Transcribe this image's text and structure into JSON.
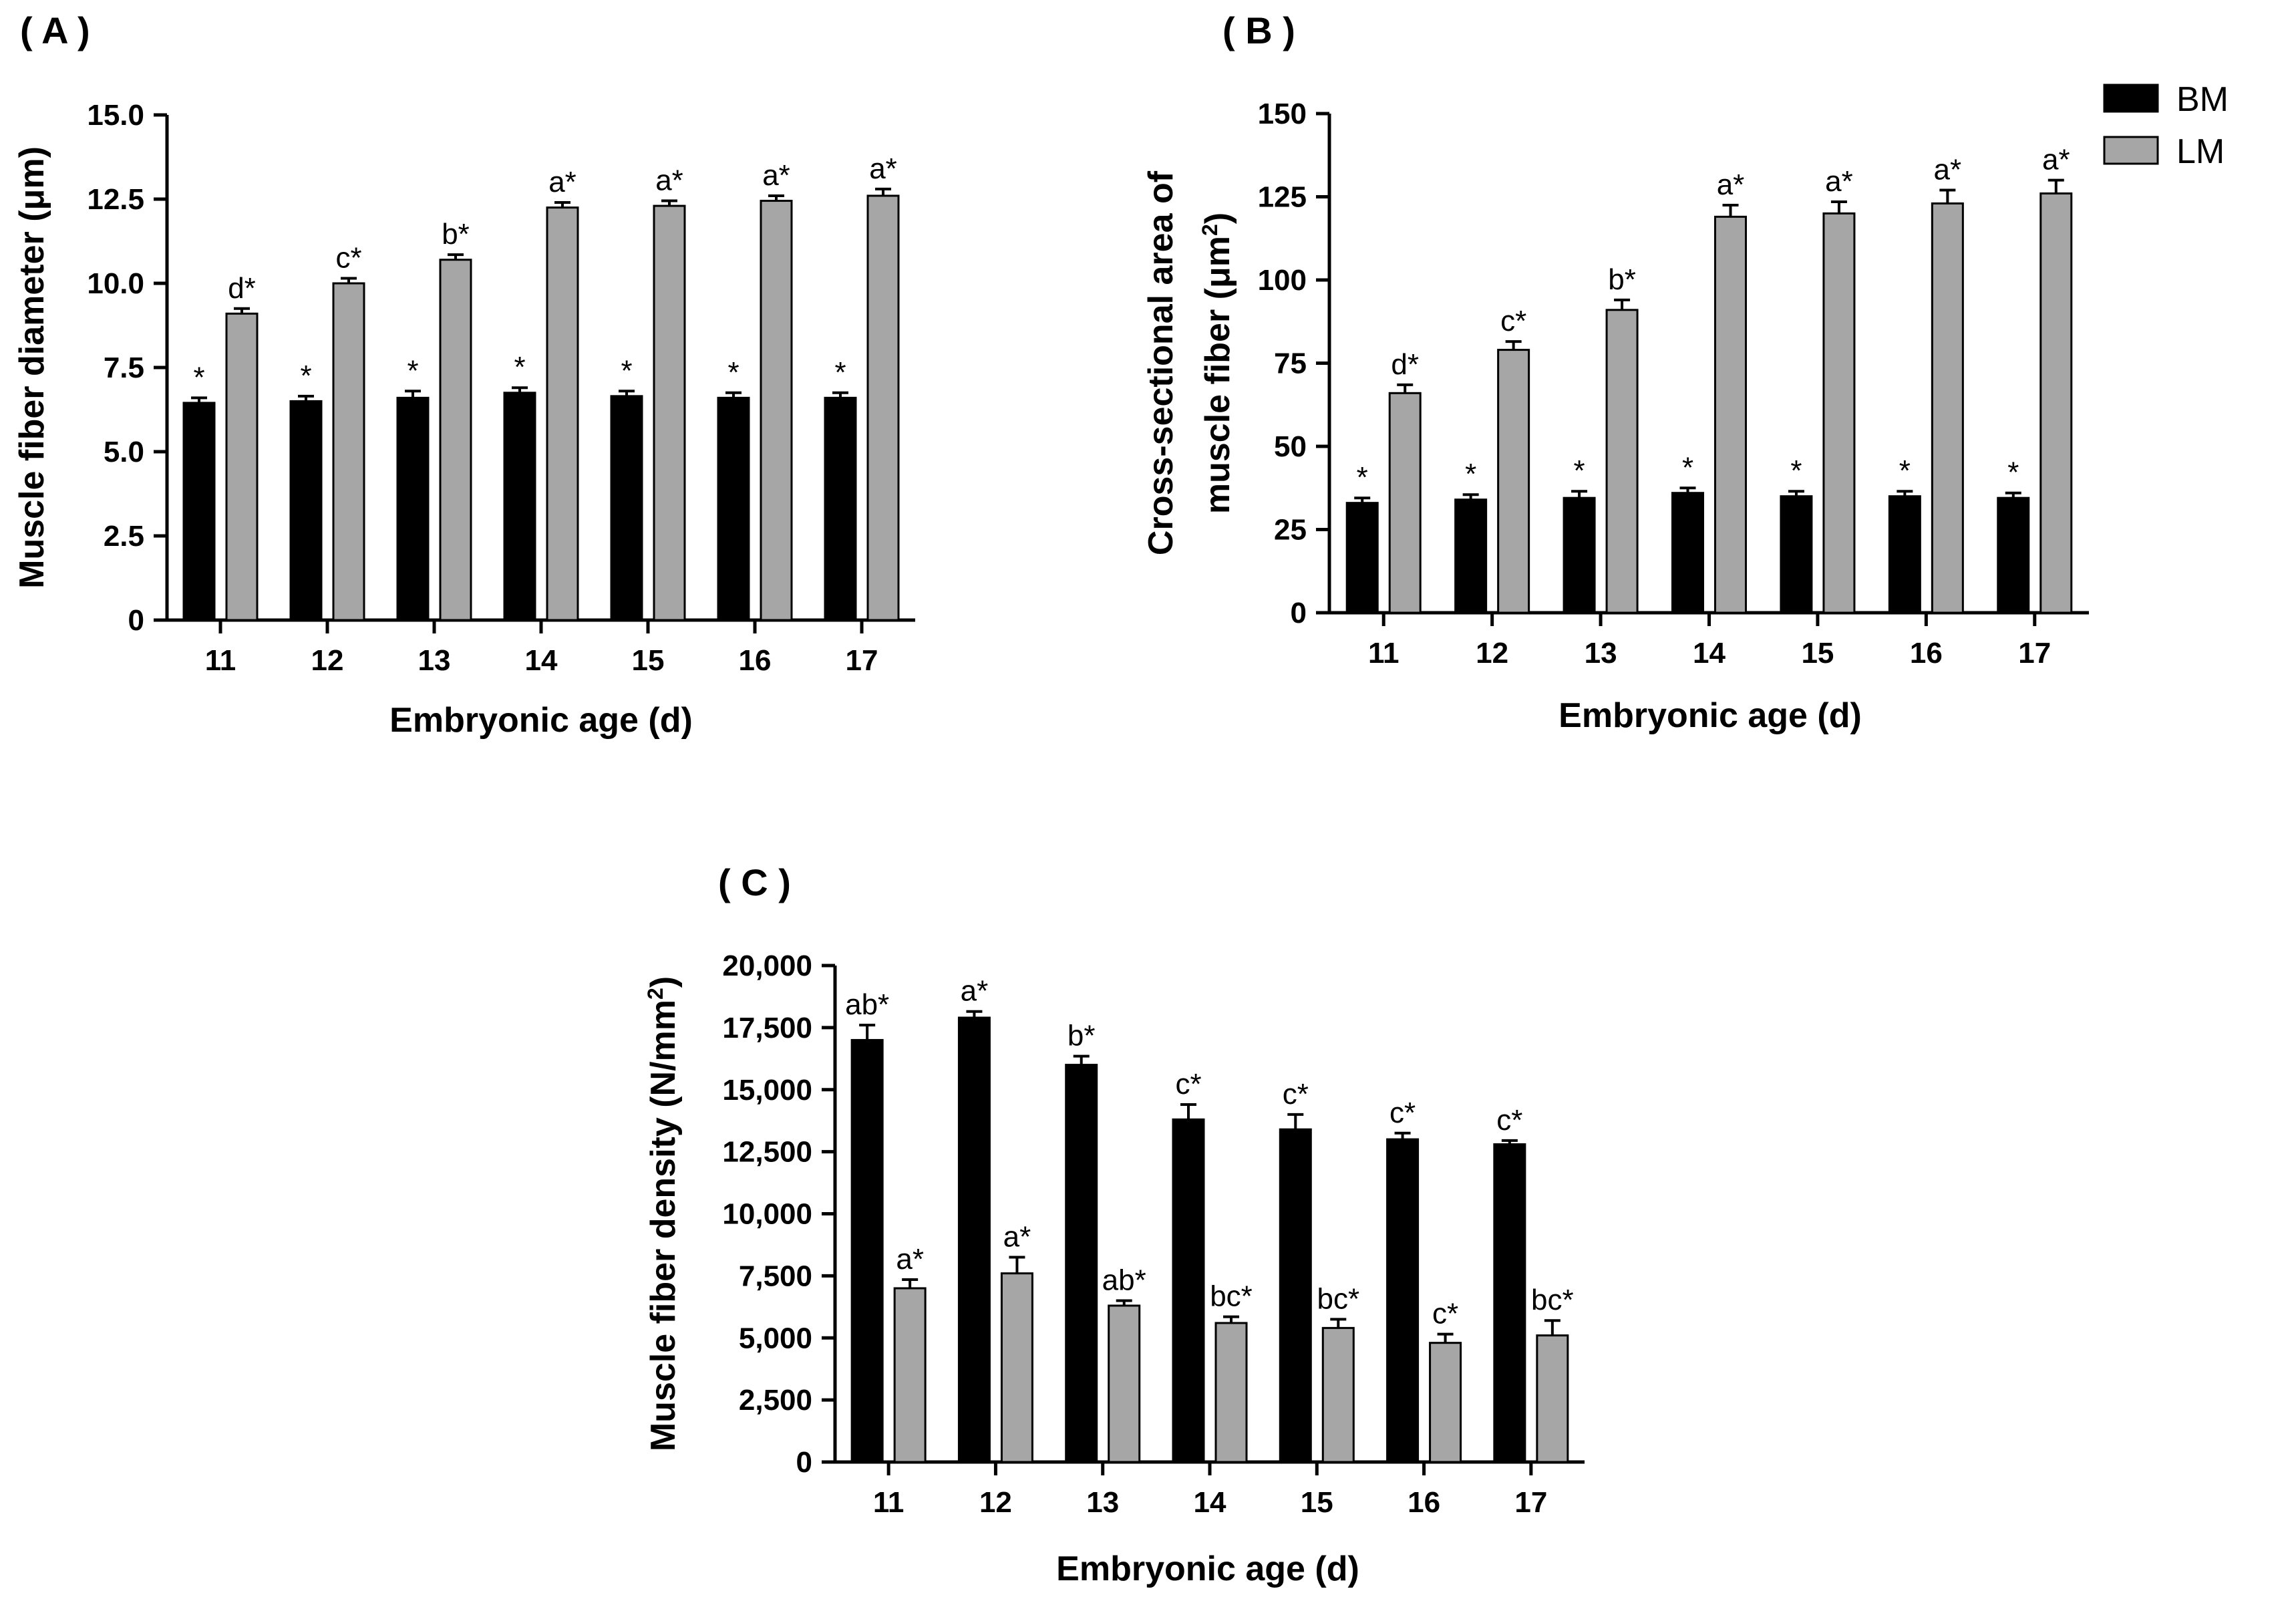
{
  "colors": {
    "BM": "#000000",
    "LM": "#a6a6a6",
    "axis": "#000000",
    "bar_stroke": "#000000"
  },
  "legend": [
    {
      "name": "BM",
      "color": "#000000"
    },
    {
      "name": "LM",
      "color": "#a6a6a6"
    }
  ],
  "chart_data": [
    {
      "panel": "( A )",
      "type": "bar",
      "title": "",
      "xlabel": "Embryonic age (d)",
      "ylabel": "Muscle fiber diameter (μm)",
      "ylim": [
        0,
        15
      ],
      "yticks": [
        "0",
        "2.5",
        "5.0",
        "7.5",
        "10.0",
        "12.5",
        "15.0"
      ],
      "ytick_values": [
        0,
        2.5,
        5.0,
        7.5,
        10.0,
        12.5,
        15.0
      ],
      "categories": [
        "11",
        "12",
        "13",
        "14",
        "15",
        "16",
        "17"
      ],
      "series": [
        {
          "name": "BM",
          "values": [
            6.45,
            6.5,
            6.6,
            6.75,
            6.65,
            6.6,
            6.6
          ],
          "errors": [
            0.15,
            0.15,
            0.2,
            0.15,
            0.15,
            0.15,
            0.15
          ],
          "labels": [
            "*",
            "*",
            "*",
            "*",
            "*",
            "*",
            "*"
          ]
        },
        {
          "name": "LM",
          "values": [
            9.1,
            10.0,
            10.7,
            12.25,
            12.3,
            12.45,
            12.6
          ],
          "errors": [
            0.15,
            0.15,
            0.15,
            0.15,
            0.15,
            0.15,
            0.2
          ],
          "labels": [
            "d*",
            "c*",
            "b*",
            "a*",
            "a*",
            "a*",
            "a*"
          ]
        }
      ]
    },
    {
      "panel": "( B )",
      "type": "bar",
      "title": "",
      "xlabel": "Embryonic age (d)",
      "ylabel_line1": "Cross-sectional area of",
      "ylabel_line2": "muscle fiber (μm",
      "ylabel_sup": "2",
      "ylabel_close": ")",
      "ylim": [
        0,
        150
      ],
      "yticks": [
        "0",
        "25",
        "50",
        "75",
        "100",
        "125",
        "150"
      ],
      "ytick_values": [
        0,
        25,
        50,
        75,
        100,
        125,
        150
      ],
      "categories": [
        "11",
        "12",
        "13",
        "14",
        "15",
        "16",
        "17"
      ],
      "series": [
        {
          "name": "BM",
          "values": [
            33,
            34,
            34.5,
            36,
            35,
            35,
            34.5
          ],
          "errors": [
            1.5,
            1.5,
            2,
            1.5,
            1.5,
            1.5,
            1.5
          ],
          "labels": [
            "*",
            "*",
            "*",
            "*",
            "*",
            "*",
            "*"
          ]
        },
        {
          "name": "LM",
          "values": [
            66,
            79,
            91,
            119,
            120,
            123,
            126
          ],
          "errors": [
            2.5,
            2.5,
            3,
            3.5,
            3.5,
            4,
            4
          ],
          "labels": [
            "d*",
            "c*",
            "b*",
            "a*",
            "a*",
            "a*",
            "a*"
          ]
        }
      ]
    },
    {
      "panel": "( C )",
      "type": "bar",
      "title": "",
      "xlabel": "Embryonic age (d)",
      "ylabel": "Muscle fiber density (N/mm",
      "ylabel_sup": "2",
      "ylabel_close": ")",
      "ylim": [
        0,
        20000
      ],
      "yticks": [
        "0",
        "2,500",
        "5,000",
        "7,500",
        "10,000",
        "12,500",
        "15,000",
        "17,500",
        "20,000"
      ],
      "ytick_values": [
        0,
        2500,
        5000,
        7500,
        10000,
        12500,
        15000,
        17500,
        20000
      ],
      "categories": [
        "11",
        "12",
        "13",
        "14",
        "15",
        "16",
        "17"
      ],
      "series": [
        {
          "name": "BM",
          "values": [
            17000,
            17900,
            16000,
            13800,
            13400,
            13000,
            12800
          ],
          "errors": [
            600,
            250,
            350,
            600,
            600,
            250,
            150
          ],
          "labels": [
            "ab*",
            "a*",
            "b*",
            "c*",
            "c*",
            "c*",
            "c*"
          ]
        },
        {
          "name": "LM",
          "values": [
            7000,
            7600,
            6300,
            5600,
            5400,
            4800,
            5100
          ],
          "errors": [
            350,
            650,
            200,
            250,
            350,
            350,
            600
          ],
          "labels": [
            "a*",
            "a*",
            "ab*",
            "bc*",
            "bc*",
            "c*",
            "bc*"
          ]
        }
      ]
    }
  ]
}
